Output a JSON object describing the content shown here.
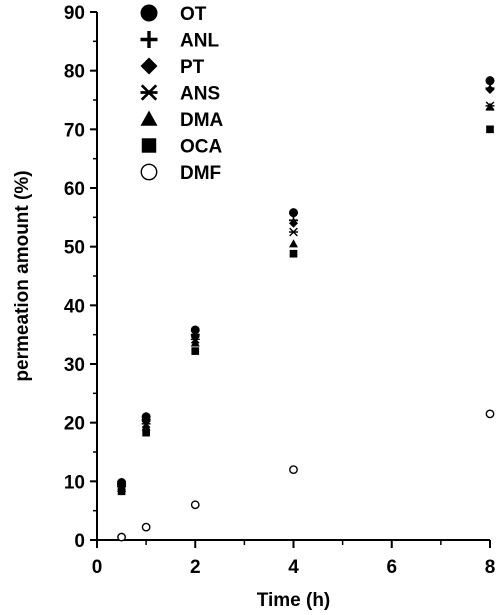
{
  "chart_data": {
    "type": "scatter",
    "title": "",
    "xlabel": "Time (h)",
    "ylabel": "permeation amount (%)",
    "xlim": [
      0,
      8
    ],
    "ylim": [
      0,
      90
    ],
    "xticks": [
      0,
      2,
      4,
      6,
      8
    ],
    "yticks": [
      0,
      10,
      20,
      30,
      40,
      50,
      60,
      70,
      80,
      90
    ],
    "grid": false,
    "legend_position": "top-left",
    "series": [
      {
        "name": "OT",
        "marker": "filled-circle",
        "x": [
          0.5,
          1,
          2,
          4,
          8
        ],
        "y": [
          9.8,
          21.0,
          35.8,
          55.8,
          78.3
        ]
      },
      {
        "name": "ANL",
        "marker": "plus",
        "x": [
          0.5,
          1,
          2,
          4,
          8
        ],
        "y": [
          9.5,
          20.5,
          35.0,
          54.5,
          77.0
        ]
      },
      {
        "name": "PT",
        "marker": "filled-diamond",
        "x": [
          0.5,
          1,
          2,
          4,
          8
        ],
        "y": [
          9.3,
          20.2,
          34.6,
          54.0,
          76.8
        ]
      },
      {
        "name": "ANS",
        "marker": "asterisk",
        "x": [
          0.5,
          1,
          2,
          4,
          8
        ],
        "y": [
          9.1,
          19.8,
          34.2,
          52.5,
          74.0
        ]
      },
      {
        "name": "DMA",
        "marker": "filled-triangle",
        "x": [
          0.5,
          1,
          2,
          4,
          8
        ],
        "y": [
          8.8,
          19.3,
          33.6,
          50.5,
          73.8
        ]
      },
      {
        "name": "OCA",
        "marker": "filled-square",
        "x": [
          0.5,
          1,
          2,
          4,
          8
        ],
        "y": [
          8.3,
          18.3,
          32.2,
          48.8,
          70.0
        ]
      },
      {
        "name": "DMF",
        "marker": "open-circle",
        "x": [
          0.5,
          1,
          2,
          4,
          8
        ],
        "y": [
          0.5,
          2.2,
          6.0,
          12.0,
          21.5
        ]
      }
    ]
  }
}
